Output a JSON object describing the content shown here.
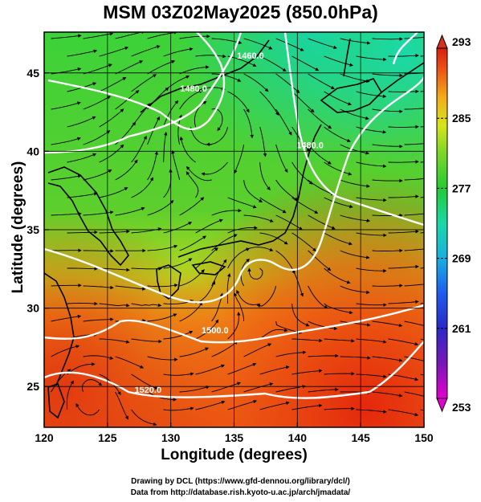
{
  "title": "MSM 03Z02May2025 (850.0hPa)",
  "xlabel": "Longitude (degrees)",
  "ylabel": "Latitude  (degrees)",
  "credit_line1": "Drawing by DCL (https://www.gfd-dennou.org/library/dcl/)",
  "credit_line2": "Data from http://database.rish.kyoto-u.ac.jp/arch/jmadata/",
  "map": {
    "lon_range": [
      120,
      150
    ],
    "lat_range": [
      22.4,
      47.6
    ],
    "lon_ticks": [
      120,
      125,
      130,
      135,
      140,
      145,
      150
    ],
    "lat_ticks": [
      25,
      30,
      35,
      40,
      45
    ],
    "lon_tick_labels": [
      "120",
      "125",
      "130",
      "135",
      "140",
      "145",
      "150"
    ],
    "lat_tick_labels": [
      "25",
      "30",
      "35",
      "40",
      "45"
    ],
    "field": "temperature (K) with streamlines and geopotential height contours",
    "contour_labels": [
      {
        "text": "1520.0",
        "lon": 128.2,
        "lat": 24.6
      },
      {
        "text": "1500.0",
        "lon": 133.5,
        "lat": 28.4
      },
      {
        "text": "1480.0",
        "lon": 131.8,
        "lat": 43.8
      },
      {
        "text": "1460.0",
        "lon": 136.3,
        "lat": 45.9
      },
      {
        "text": "1480.0",
        "lon": 141.0,
        "lat": 40.2
      }
    ]
  },
  "colorbar": {
    "min": 253,
    "max": 293,
    "ticks": [
      253,
      261,
      269,
      277,
      285,
      293
    ],
    "tick_labels": [
      "253",
      "261",
      "269",
      "277",
      "285",
      "293"
    ],
    "colors": [
      "#e400d0",
      "#4a1ab0",
      "#1d3ef0",
      "#19a8e6",
      "#19d8b8",
      "#22cc33",
      "#8cdc22",
      "#e0e81a",
      "#f2b018",
      "#ee5a14",
      "#d8200e"
    ]
  }
}
